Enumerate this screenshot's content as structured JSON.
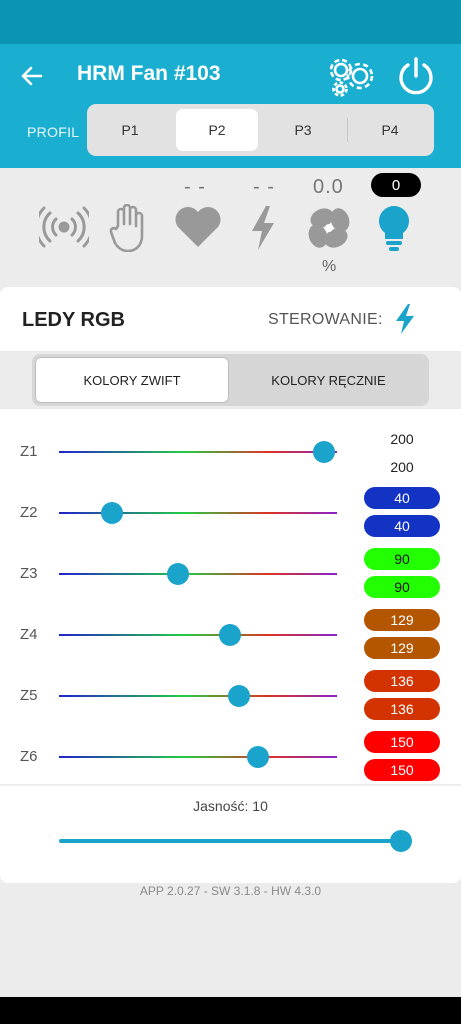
{
  "app_bar": {
    "title": "HRM Fan #103",
    "icons": [
      "arrow-left-icon",
      "gears-icon",
      "power-icon"
    ],
    "background": "#1aafd0"
  },
  "profiles": {
    "label": "PROFIL",
    "tabs": [
      "P1",
      "P2",
      "P3",
      "P4"
    ],
    "selected": "P2"
  },
  "sensors": {
    "heart_value": "- -",
    "power_value": "- -",
    "fan_value": "0.0",
    "fan_unit": "%",
    "light_value": "0",
    "icons": [
      "broadcast-icon",
      "hand-icon",
      "heart-icon",
      "lightning-icon",
      "fan-icon",
      "bulb-icon"
    ]
  },
  "leds": {
    "title": "LEDY RGB",
    "control_label": "STEROWANIE:",
    "control_icon": "lightning-icon",
    "modes": [
      "KOLORY ZWIFT",
      "KOLORY RĘCZNIE"
    ],
    "selected_mode": "KOLORY ZWIFT",
    "zones": [
      {
        "label": "Z1",
        "value": 200,
        "top_text": "200",
        "bottom_text": "200",
        "color": null
      },
      {
        "label": "Z2",
        "value": 40,
        "top_text": "40",
        "bottom_text": "40",
        "color": "#1233c4"
      },
      {
        "label": "Z3",
        "value": 90,
        "top_text": "90",
        "bottom_text": "90",
        "color": "#22ff00"
      },
      {
        "label": "Z4",
        "value": 129,
        "top_text": "129",
        "bottom_text": "129",
        "color": "#b45500"
      },
      {
        "label": "Z5",
        "value": 136,
        "top_text": "136",
        "bottom_text": "136",
        "color": "#d33300"
      },
      {
        "label": "Z6",
        "value": 150,
        "top_text": "150",
        "bottom_text": "150",
        "color": "#ff0000"
      }
    ],
    "slider_max": 210
  },
  "brightness": {
    "label": "Jasność: 10",
    "value": 10,
    "max": 10
  },
  "version": "APP 2.0.27 - SW 3.1.8 - HW 4.3.0"
}
